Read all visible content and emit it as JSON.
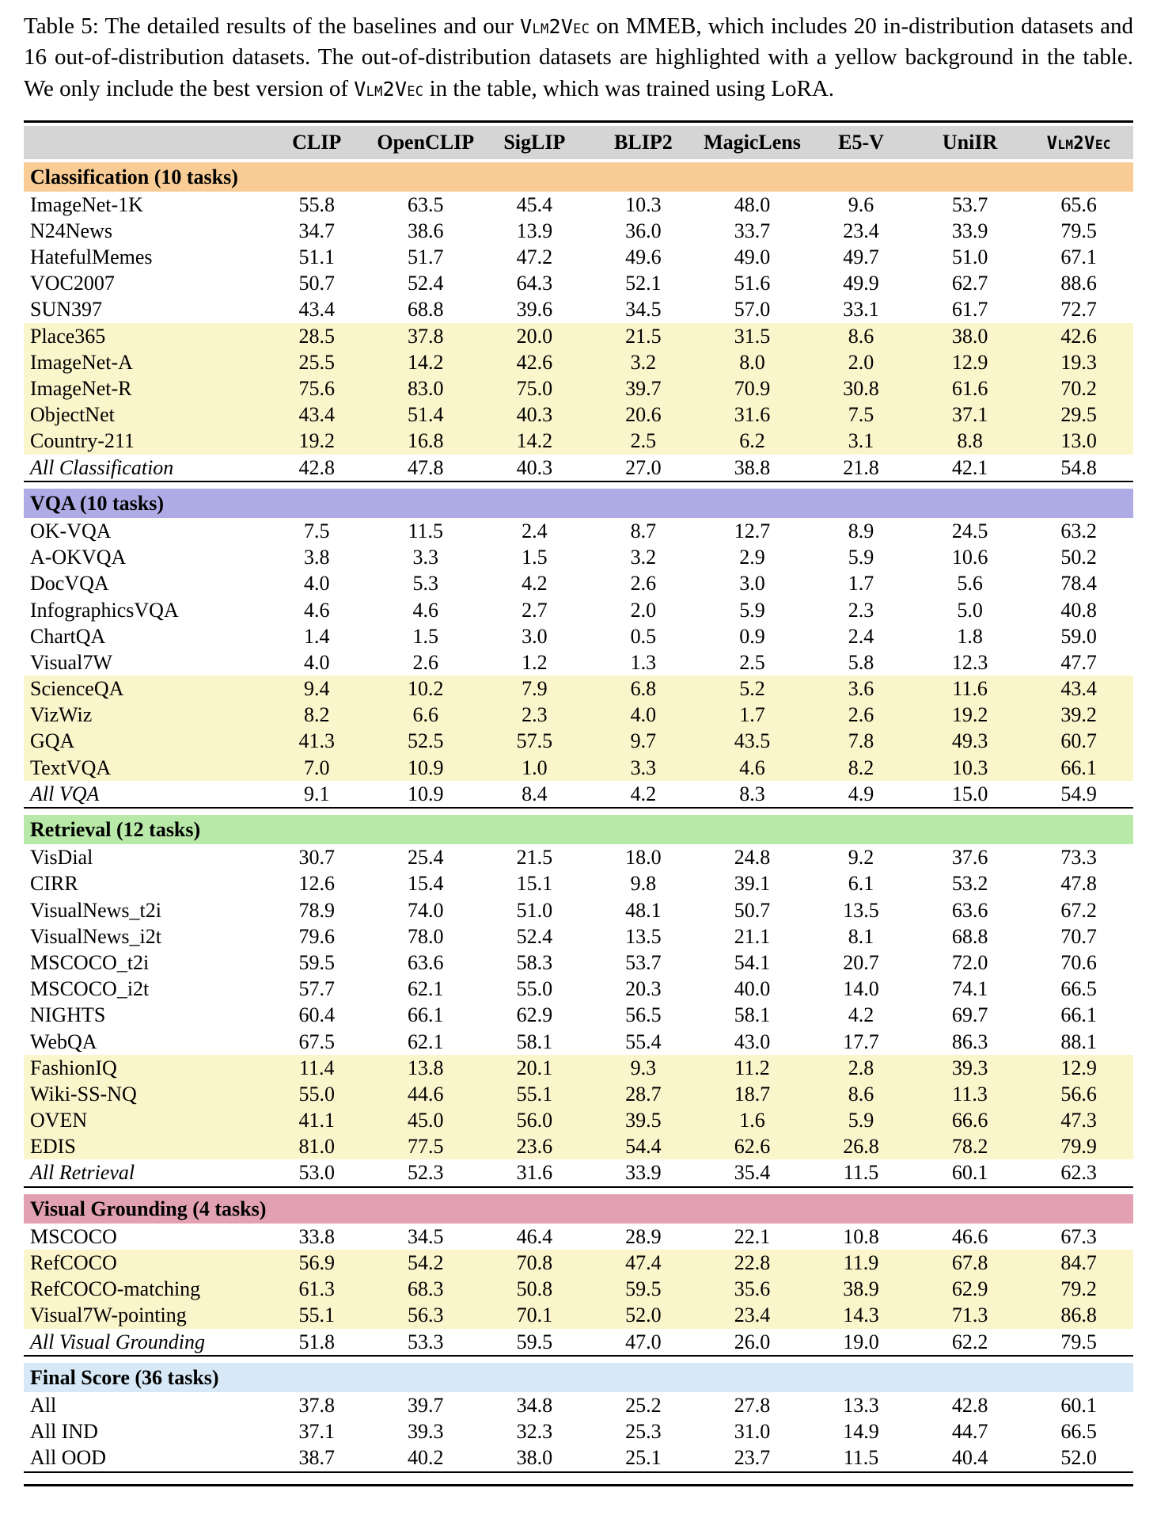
{
  "caption": {
    "segments": [
      {
        "style": "normal",
        "text": "Table 5: The detailed results of the baselines and our "
      },
      {
        "style": "smallcaps",
        "text": "Vlm2Vec"
      },
      {
        "style": "normal",
        "text": " on MMEB, which includes 20 in-distribution datasets and 16 out-of-distribution datasets. The out-of-distribution datasets are highlighted with a yellow background in the table. We only include the best version of "
      },
      {
        "style": "smallcaps",
        "text": "Vlm2Vec"
      },
      {
        "style": "normal",
        "text": " in the table, which was trained using LoRA."
      }
    ]
  },
  "table": {
    "header_bg": "#D5D5D5",
    "ood_bg": "#FBF5CB",
    "columns": [
      {
        "label": "CLIP"
      },
      {
        "label": "OpenCLIP"
      },
      {
        "label": "SigLIP"
      },
      {
        "label": "BLIP2"
      },
      {
        "label": "MagicLens"
      },
      {
        "label": "E5-V"
      },
      {
        "label": "UniIR"
      },
      {
        "label": "Vlm2Vec",
        "smallcaps": true
      }
    ],
    "sections": [
      {
        "title": "Classification (10 tasks)",
        "color": "#F8CC94",
        "rows": [
          {
            "label": "ImageNet-1K",
            "ood": false,
            "summary": false,
            "values": [
              "55.8",
              "63.5",
              "45.4",
              "10.3",
              "48.0",
              "9.6",
              "53.7",
              "65.6"
            ]
          },
          {
            "label": "N24News",
            "ood": false,
            "summary": false,
            "values": [
              "34.7",
              "38.6",
              "13.9",
              "36.0",
              "33.7",
              "23.4",
              "33.9",
              "79.5"
            ]
          },
          {
            "label": "HatefulMemes",
            "ood": false,
            "summary": false,
            "values": [
              "51.1",
              "51.7",
              "47.2",
              "49.6",
              "49.0",
              "49.7",
              "51.0",
              "67.1"
            ]
          },
          {
            "label": "VOC2007",
            "ood": false,
            "summary": false,
            "values": [
              "50.7",
              "52.4",
              "64.3",
              "52.1",
              "51.6",
              "49.9",
              "62.7",
              "88.6"
            ]
          },
          {
            "label": "SUN397",
            "ood": false,
            "summary": false,
            "values": [
              "43.4",
              "68.8",
              "39.6",
              "34.5",
              "57.0",
              "33.1",
              "61.7",
              "72.7"
            ]
          },
          {
            "label": "Place365",
            "ood": true,
            "summary": false,
            "values": [
              "28.5",
              "37.8",
              "20.0",
              "21.5",
              "31.5",
              "8.6",
              "38.0",
              "42.6"
            ]
          },
          {
            "label": "ImageNet-A",
            "ood": true,
            "summary": false,
            "values": [
              "25.5",
              "14.2",
              "42.6",
              "3.2",
              "8.0",
              "2.0",
              "12.9",
              "19.3"
            ]
          },
          {
            "label": "ImageNet-R",
            "ood": true,
            "summary": false,
            "values": [
              "75.6",
              "83.0",
              "75.0",
              "39.7",
              "70.9",
              "30.8",
              "61.6",
              "70.2"
            ]
          },
          {
            "label": "ObjectNet",
            "ood": true,
            "summary": false,
            "values": [
              "43.4",
              "51.4",
              "40.3",
              "20.6",
              "31.6",
              "7.5",
              "37.1",
              "29.5"
            ]
          },
          {
            "label": "Country-211",
            "ood": true,
            "summary": false,
            "values": [
              "19.2",
              "16.8",
              "14.2",
              "2.5",
              "6.2",
              "3.1",
              "8.8",
              "13.0"
            ]
          },
          {
            "label": "All Classification",
            "ood": false,
            "summary": true,
            "values": [
              "42.8",
              "47.8",
              "40.3",
              "27.0",
              "38.8",
              "21.8",
              "42.1",
              "54.8"
            ]
          }
        ]
      },
      {
        "title": "VQA (10 tasks)",
        "color": "#AFABE5",
        "rows": [
          {
            "label": "OK-VQA",
            "ood": false,
            "summary": false,
            "values": [
              "7.5",
              "11.5",
              "2.4",
              "8.7",
              "12.7",
              "8.9",
              "24.5",
              "63.2"
            ]
          },
          {
            "label": "A-OKVQA",
            "ood": false,
            "summary": false,
            "values": [
              "3.8",
              "3.3",
              "1.5",
              "3.2",
              "2.9",
              "5.9",
              "10.6",
              "50.2"
            ]
          },
          {
            "label": "DocVQA",
            "ood": false,
            "summary": false,
            "values": [
              "4.0",
              "5.3",
              "4.2",
              "2.6",
              "3.0",
              "1.7",
              "5.6",
              "78.4"
            ]
          },
          {
            "label": "InfographicsVQA",
            "ood": false,
            "summary": false,
            "values": [
              "4.6",
              "4.6",
              "2.7",
              "2.0",
              "5.9",
              "2.3",
              "5.0",
              "40.8"
            ]
          },
          {
            "label": "ChartQA",
            "ood": false,
            "summary": false,
            "values": [
              "1.4",
              "1.5",
              "3.0",
              "0.5",
              "0.9",
              "2.4",
              "1.8",
              "59.0"
            ]
          },
          {
            "label": "Visual7W",
            "ood": false,
            "summary": false,
            "values": [
              "4.0",
              "2.6",
              "1.2",
              "1.3",
              "2.5",
              "5.8",
              "12.3",
              "47.7"
            ]
          },
          {
            "label": "ScienceQA",
            "ood": true,
            "summary": false,
            "values": [
              "9.4",
              "10.2",
              "7.9",
              "6.8",
              "5.2",
              "3.6",
              "11.6",
              "43.4"
            ]
          },
          {
            "label": "VizWiz",
            "ood": true,
            "summary": false,
            "values": [
              "8.2",
              "6.6",
              "2.3",
              "4.0",
              "1.7",
              "2.6",
              "19.2",
              "39.2"
            ]
          },
          {
            "label": "GQA",
            "ood": true,
            "summary": false,
            "values": [
              "41.3",
              "52.5",
              "57.5",
              "9.7",
              "43.5",
              "7.8",
              "49.3",
              "60.7"
            ]
          },
          {
            "label": "TextVQA",
            "ood": true,
            "summary": false,
            "values": [
              "7.0",
              "10.9",
              "1.0",
              "3.3",
              "4.6",
              "8.2",
              "10.3",
              "66.1"
            ]
          },
          {
            "label": "All VQA",
            "ood": false,
            "summary": true,
            "values": [
              "9.1",
              "10.9",
              "8.4",
              "4.2",
              "8.3",
              "4.9",
              "15.0",
              "54.9"
            ]
          }
        ]
      },
      {
        "title": "Retrieval (12 tasks)",
        "color": "#B8E9A8",
        "rows": [
          {
            "label": "VisDial",
            "ood": false,
            "summary": false,
            "values": [
              "30.7",
              "25.4",
              "21.5",
              "18.0",
              "24.8",
              "9.2",
              "37.6",
              "73.3"
            ]
          },
          {
            "label": "CIRR",
            "ood": false,
            "summary": false,
            "values": [
              "12.6",
              "15.4",
              "15.1",
              "9.8",
              "39.1",
              "6.1",
              "53.2",
              "47.8"
            ]
          },
          {
            "label": "VisualNews_t2i",
            "ood": false,
            "summary": false,
            "values": [
              "78.9",
              "74.0",
              "51.0",
              "48.1",
              "50.7",
              "13.5",
              "63.6",
              "67.2"
            ]
          },
          {
            "label": "VisualNews_i2t",
            "ood": false,
            "summary": false,
            "values": [
              "79.6",
              "78.0",
              "52.4",
              "13.5",
              "21.1",
              "8.1",
              "68.8",
              "70.7"
            ]
          },
          {
            "label": "MSCOCO_t2i",
            "ood": false,
            "summary": false,
            "values": [
              "59.5",
              "63.6",
              "58.3",
              "53.7",
              "54.1",
              "20.7",
              "72.0",
              "70.6"
            ]
          },
          {
            "label": "MSCOCO_i2t",
            "ood": false,
            "summary": false,
            "values": [
              "57.7",
              "62.1",
              "55.0",
              "20.3",
              "40.0",
              "14.0",
              "74.1",
              "66.5"
            ]
          },
          {
            "label": "NIGHTS",
            "ood": false,
            "summary": false,
            "values": [
              "60.4",
              "66.1",
              "62.9",
              "56.5",
              "58.1",
              "4.2",
              "69.7",
              "66.1"
            ]
          },
          {
            "label": "WebQA",
            "ood": false,
            "summary": false,
            "values": [
              "67.5",
              "62.1",
              "58.1",
              "55.4",
              "43.0",
              "17.7",
              "86.3",
              "88.1"
            ]
          },
          {
            "label": "FashionIQ",
            "ood": true,
            "summary": false,
            "values": [
              "11.4",
              "13.8",
              "20.1",
              "9.3",
              "11.2",
              "2.8",
              "39.3",
              "12.9"
            ]
          },
          {
            "label": "Wiki-SS-NQ",
            "ood": true,
            "summary": false,
            "values": [
              "55.0",
              "44.6",
              "55.1",
              "28.7",
              "18.7",
              "8.6",
              "11.3",
              "56.6"
            ]
          },
          {
            "label": "OVEN",
            "ood": true,
            "summary": false,
            "values": [
              "41.1",
              "45.0",
              "56.0",
              "39.5",
              "1.6",
              "5.9",
              "66.6",
              "47.3"
            ]
          },
          {
            "label": "EDIS",
            "ood": true,
            "summary": false,
            "values": [
              "81.0",
              "77.5",
              "23.6",
              "54.4",
              "62.6",
              "26.8",
              "78.2",
              "79.9"
            ]
          },
          {
            "label": "All Retrieval",
            "ood": false,
            "summary": true,
            "values": [
              "53.0",
              "52.3",
              "31.6",
              "33.9",
              "35.4",
              "11.5",
              "60.1",
              "62.3"
            ]
          }
        ]
      },
      {
        "title": "Visual Grounding (4 tasks)",
        "color": "#E2A0B3",
        "rows": [
          {
            "label": "MSCOCO",
            "ood": false,
            "summary": false,
            "values": [
              "33.8",
              "34.5",
              "46.4",
              "28.9",
              "22.1",
              "10.8",
              "46.6",
              "67.3"
            ]
          },
          {
            "label": "RefCOCO",
            "ood": true,
            "summary": false,
            "values": [
              "56.9",
              "54.2",
              "70.8",
              "47.4",
              "22.8",
              "11.9",
              "67.8",
              "84.7"
            ]
          },
          {
            "label": "RefCOCO-matching",
            "ood": true,
            "summary": false,
            "values": [
              "61.3",
              "68.3",
              "50.8",
              "59.5",
              "35.6",
              "38.9",
              "62.9",
              "79.2"
            ]
          },
          {
            "label": "Visual7W-pointing",
            "ood": true,
            "summary": false,
            "values": [
              "55.1",
              "56.3",
              "70.1",
              "52.0",
              "23.4",
              "14.3",
              "71.3",
              "86.8"
            ]
          },
          {
            "label": "All Visual Grounding",
            "ood": false,
            "summary": true,
            "values": [
              "51.8",
              "53.3",
              "59.5",
              "47.0",
              "26.0",
              "19.0",
              "62.2",
              "79.5"
            ]
          }
        ]
      },
      {
        "title": "Final Score (36 tasks)",
        "color": "#D7E9F6",
        "rows": [
          {
            "label": "All",
            "ood": false,
            "summary": false,
            "values": [
              "37.8",
              "39.7",
              "34.8",
              "25.2",
              "27.8",
              "13.3",
              "42.8",
              "60.1"
            ]
          },
          {
            "label": "All IND",
            "ood": false,
            "summary": false,
            "values": [
              "37.1",
              "39.3",
              "32.3",
              "25.3",
              "31.0",
              "14.9",
              "44.7",
              "66.5"
            ]
          },
          {
            "label": "All OOD",
            "ood": false,
            "summary": false,
            "values": [
              "38.7",
              "40.2",
              "38.0",
              "25.1",
              "23.7",
              "11.5",
              "40.4",
              "52.0"
            ]
          }
        ]
      }
    ]
  }
}
